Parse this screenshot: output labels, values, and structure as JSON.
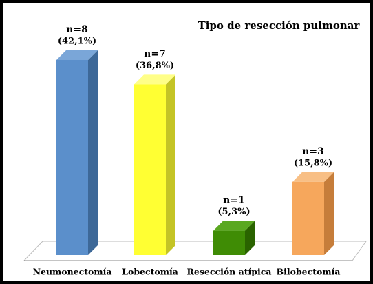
{
  "chart_data": {
    "type": "bar3d",
    "title": "Tipo de resección pulmonar",
    "categories": [
      "Neumonectomía",
      "Lobectomía",
      "Resección atípica",
      "Bilobectomía"
    ],
    "values": [
      8,
      7,
      1,
      3
    ],
    "value_labels": [
      "n=8",
      "n=7",
      "n=1",
      "n=3"
    ],
    "percentages": [
      42.1,
      36.8,
      5.3,
      15.8
    ],
    "percentage_labels": [
      "(42,1%)",
      "(36,8%)",
      "(5,3%)",
      "(15,8%)"
    ],
    "colors": [
      "#5b8fcb",
      "#ffff33",
      "#3f8c05",
      "#f6a75c"
    ],
    "side_colors": [
      "#3d6898",
      "#c4c426",
      "#2a6300",
      "#c67d3a"
    ],
    "top_colors": [
      "#7aa6d8",
      "#ffff88",
      "#5aa820",
      "#f8bf85"
    ]
  }
}
